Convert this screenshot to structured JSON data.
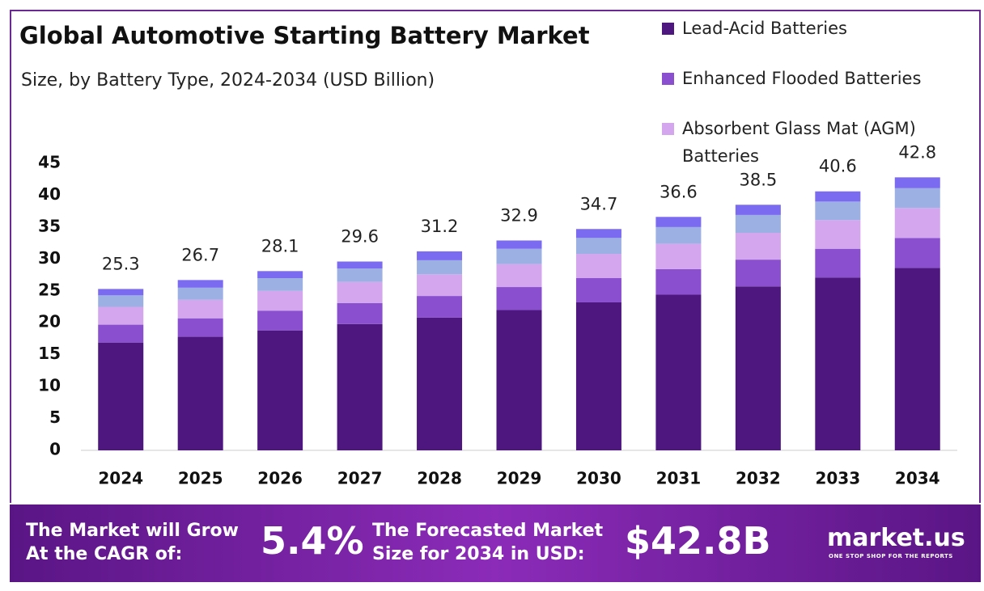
{
  "chart_data": {
    "type": "stacked_bar",
    "title": "Global Automotive Starting Battery Market",
    "subtitle": "Size, by Battery Type, 2024-2034 (USD Billion)",
    "categories": [
      "2024",
      "2025",
      "2026",
      "2027",
      "2028",
      "2029",
      "2030",
      "2031",
      "2032",
      "2033",
      "2034"
    ],
    "series": [
      {
        "name": "Lead-Acid Batteries",
        "color": "#4e1780",
        "values": [
          16.9,
          17.8,
          18.8,
          19.8,
          20.8,
          22.0,
          23.2,
          24.4,
          25.7,
          27.1,
          28.6
        ]
      },
      {
        "name": "Enhanced Flooded Batteries",
        "color": "#8a4fcf",
        "values": [
          2.8,
          2.9,
          3.1,
          3.3,
          3.4,
          3.6,
          3.8,
          4.0,
          4.2,
          4.5,
          4.7
        ]
      },
      {
        "name": "Absorbent Glass Mat (AGM) Batteries",
        "color": "#d3a6ee",
        "values": [
          2.8,
          2.9,
          3.1,
          3.3,
          3.4,
          3.6,
          3.8,
          4.0,
          4.2,
          4.5,
          4.7
        ]
      },
      {
        "color": "#9cb0e3",
        "values": [
          1.8,
          1.9,
          2.0,
          2.1,
          2.2,
          2.4,
          2.5,
          2.6,
          2.8,
          2.9,
          3.1
        ]
      },
      {
        "color": "#7a6bf0",
        "values": [
          1.0,
          1.2,
          1.1,
          1.1,
          1.4,
          1.3,
          1.4,
          1.6,
          1.6,
          1.6,
          1.7
        ]
      }
    ],
    "totals": [
      25.3,
      26.7,
      28.1,
      29.6,
      31.2,
      32.9,
      34.7,
      36.6,
      38.5,
      40.6,
      42.8
    ],
    "ylim": [
      0,
      45
    ],
    "yticks": [
      0,
      5,
      10,
      15,
      20,
      25,
      30,
      35,
      40,
      45
    ],
    "grid": false
  },
  "footer": {
    "cagr_text": [
      "The Market will Grow",
      "At the CAGR of:"
    ],
    "cagr": "5.4%",
    "forecast_text": [
      "The Forecasted Market",
      "Size for 2034 in USD:"
    ],
    "forecast": "$42.8B",
    "brand": "market.us",
    "tagline": "ONE STOP SHOP FOR THE REPORTS"
  }
}
